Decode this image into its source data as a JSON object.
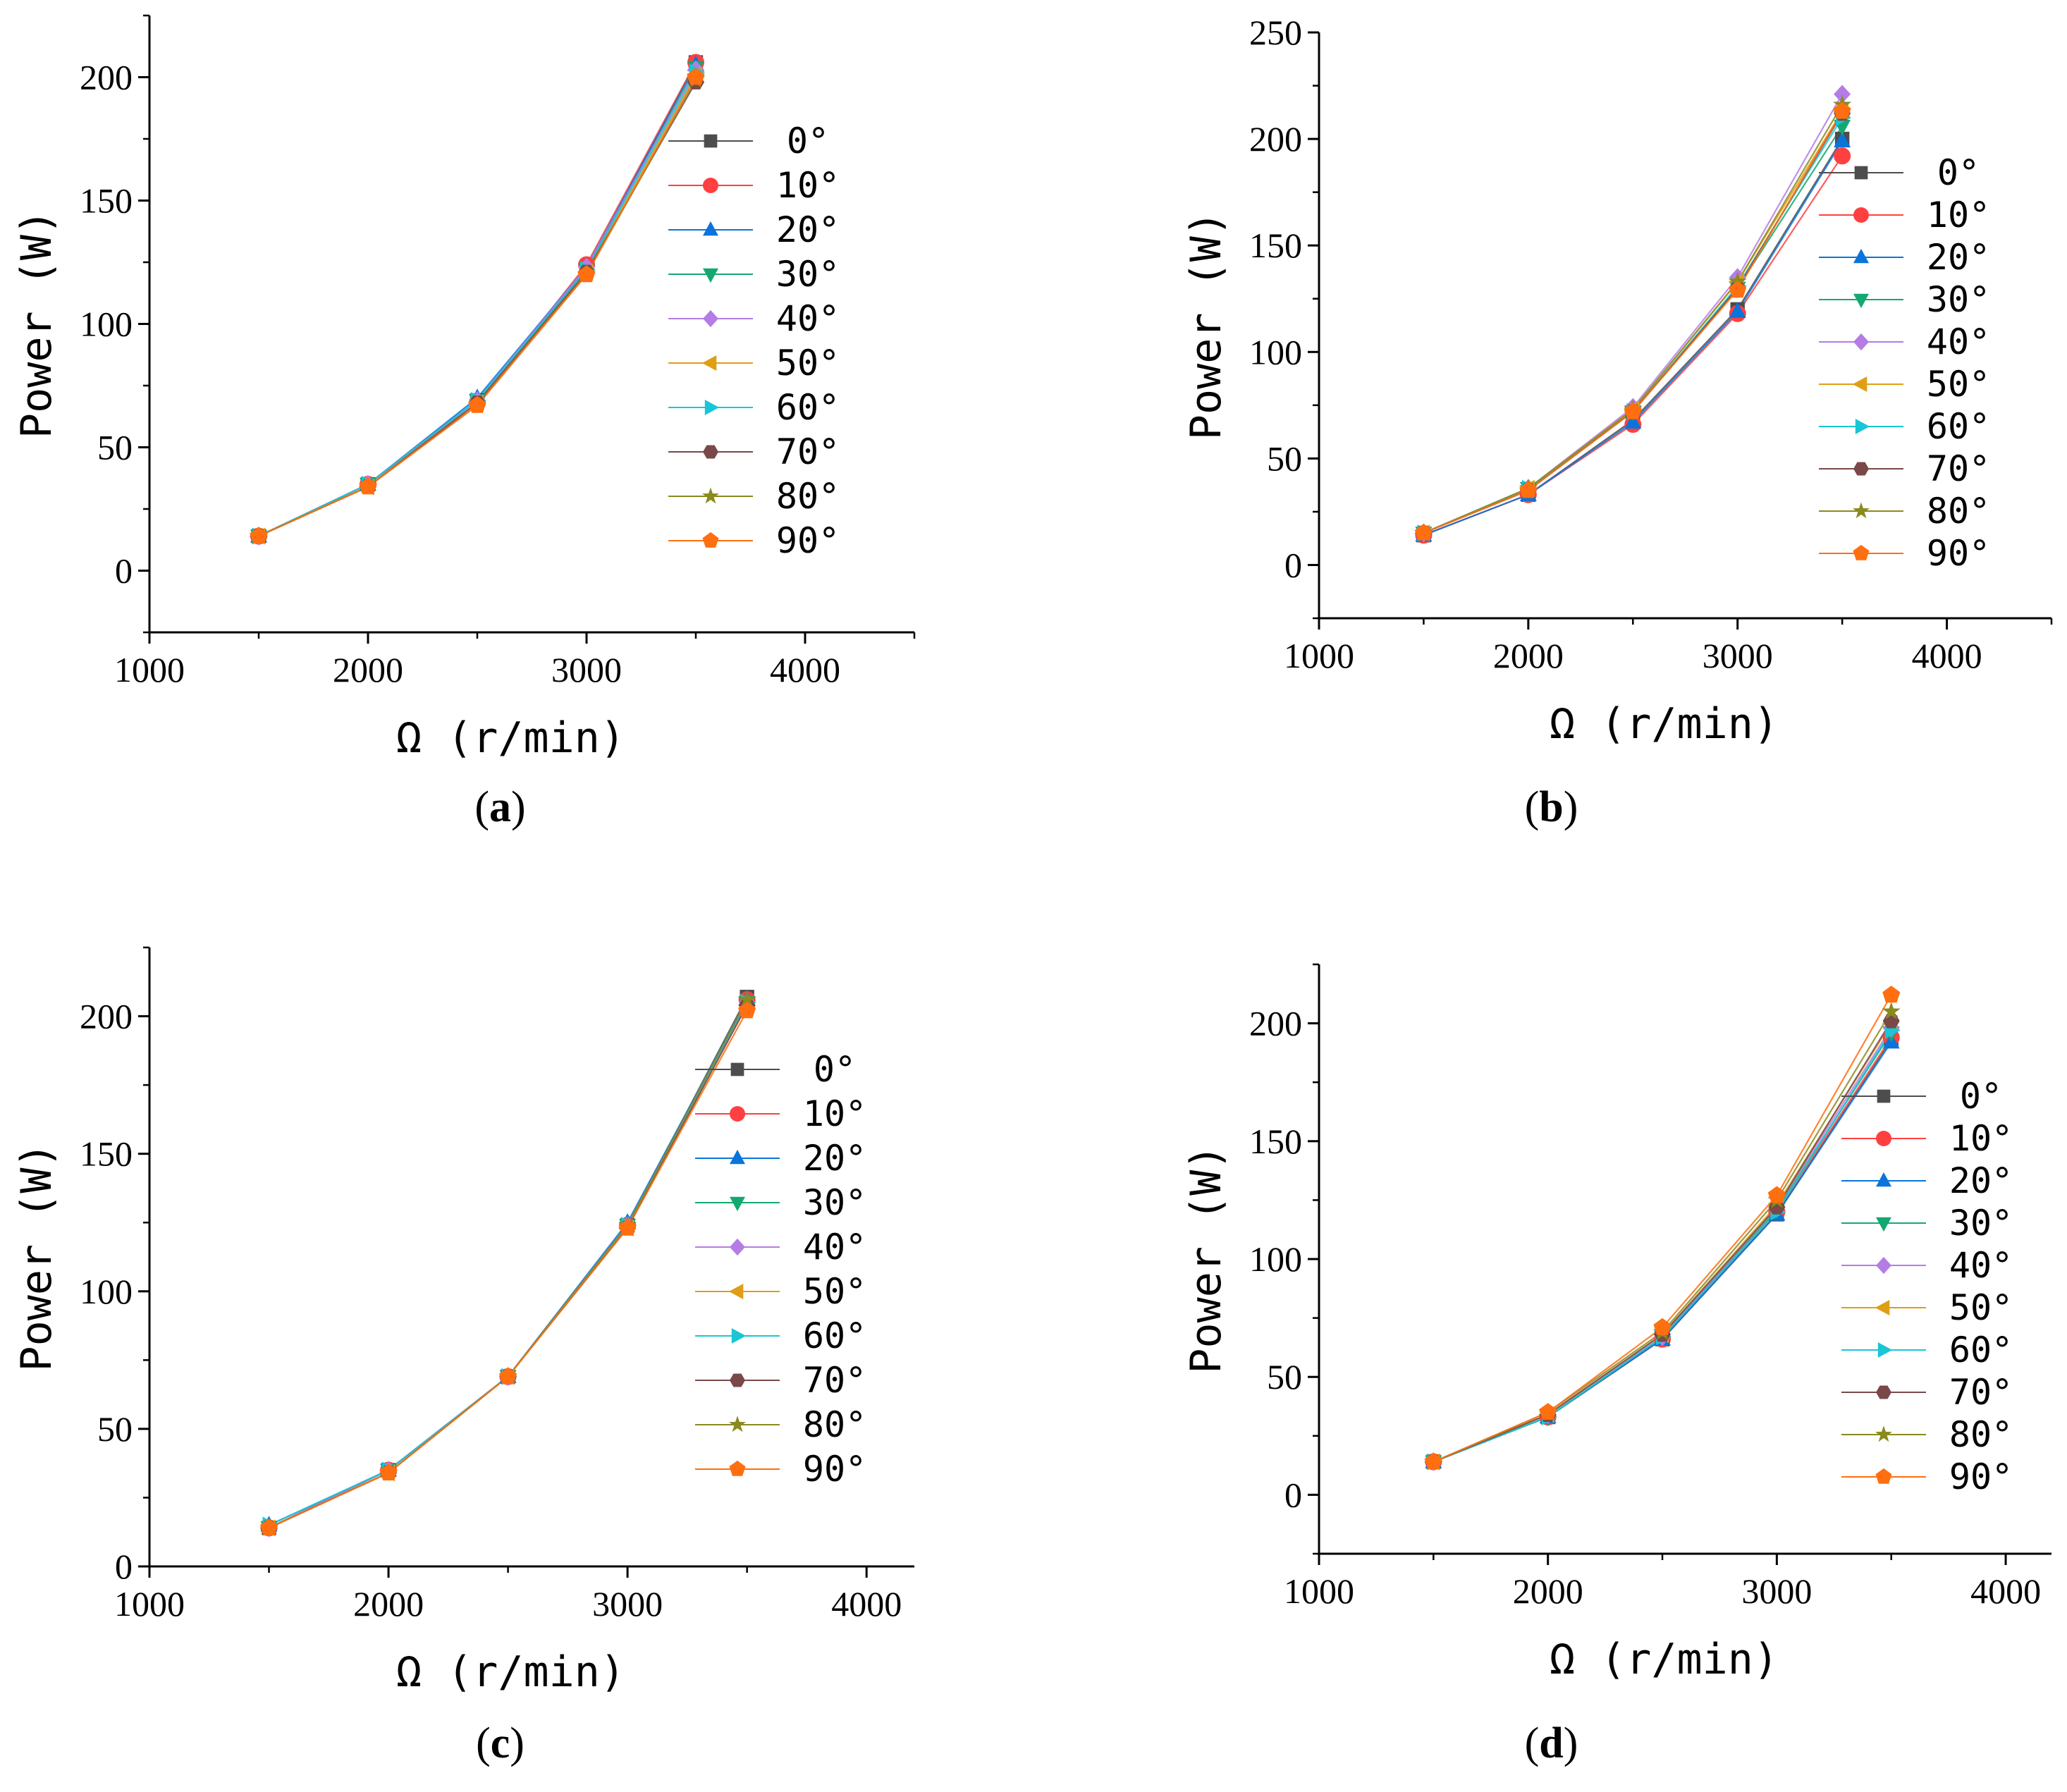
{
  "figure": {
    "legend_angles": [
      "0°",
      "10°",
      "20°",
      "30°",
      "40°",
      "50°",
      "60°",
      "70°",
      "80°",
      "90°"
    ],
    "series_colors": [
      "#4d4d4d",
      "#ff4040",
      "#0a74da",
      "#14a870",
      "#b57ce6",
      "#e09e14",
      "#18c6d6",
      "#7a4848",
      "#8a8a1e",
      "#ff6f0f"
    ],
    "series_markers": [
      "square",
      "circle",
      "triangle-up",
      "triangle-down",
      "diamond",
      "triangle-left",
      "triangle-right",
      "hexagon",
      "star",
      "pentagon"
    ]
  },
  "chart_data": [
    {
      "type": "line",
      "panel": "(a)",
      "panel_letter": "a",
      "xlabel": "Ω  (r/min)",
      "ylabel": "Power  (W)",
      "xlim": [
        1000,
        4500
      ],
      "ylim": [
        -25,
        225
      ],
      "xticks": [
        1000,
        2000,
        3000,
        4000
      ],
      "yticks": [
        0,
        50,
        100,
        150,
        200
      ],
      "x": [
        1500,
        2000,
        2500,
        3000,
        3500
      ],
      "series": [
        {
          "name": "0°",
          "values": [
            14,
            35,
            69,
            122,
            206
          ]
        },
        {
          "name": "10°",
          "values": [
            14,
            35,
            68,
            124,
            206
          ]
        },
        {
          "name": "20°",
          "values": [
            14,
            35,
            70,
            123,
            205
          ]
        },
        {
          "name": "30°",
          "values": [
            14,
            35,
            69,
            122,
            204
          ]
        },
        {
          "name": "40°",
          "values": [
            14,
            35,
            69,
            123,
            203
          ]
        },
        {
          "name": "50°",
          "values": [
            14,
            34,
            68,
            121,
            201
          ]
        },
        {
          "name": "60°",
          "values": [
            14,
            35,
            69,
            122,
            202
          ]
        },
        {
          "name": "70°",
          "values": [
            14,
            34,
            68,
            121,
            198
          ]
        },
        {
          "name": "80°",
          "values": [
            14,
            34,
            67,
            120,
            199
          ]
        },
        {
          "name": "90°",
          "values": [
            14,
            34,
            67,
            120,
            200
          ]
        }
      ]
    },
    {
      "type": "line",
      "panel": "(b)",
      "panel_letter": "b",
      "xlabel": "Ω  (r/min)",
      "ylabel": "Power  (W)",
      "xlim": [
        1000,
        4500
      ],
      "ylim": [
        -25,
        250
      ],
      "xticks": [
        1000,
        2000,
        3000,
        4000
      ],
      "yticks": [
        0,
        50,
        100,
        150,
        200,
        250
      ],
      "x": [
        1500,
        2000,
        2500,
        3000,
        3500
      ],
      "series": [
        {
          "name": "0°",
          "values": [
            14,
            33,
            68,
            120,
            200
          ]
        },
        {
          "name": "10°",
          "values": [
            14,
            33,
            66,
            118,
            192
          ]
        },
        {
          "name": "20°",
          "values": [
            14,
            33,
            67,
            119,
            199
          ]
        },
        {
          "name": "30°",
          "values": [
            15,
            36,
            72,
            130,
            206
          ]
        },
        {
          "name": "40°",
          "values": [
            15,
            36,
            74,
            135,
            221
          ]
        },
        {
          "name": "50°",
          "values": [
            15,
            36,
            73,
            133,
            213
          ]
        },
        {
          "name": "60°",
          "values": [
            15,
            36,
            72,
            131,
            210
          ]
        },
        {
          "name": "70°",
          "values": [
            15,
            35,
            72,
            130,
            212
          ]
        },
        {
          "name": "80°",
          "values": [
            15,
            36,
            73,
            133,
            216
          ]
        },
        {
          "name": "90°",
          "values": [
            15,
            35,
            72,
            129,
            213
          ]
        }
      ]
    },
    {
      "type": "line",
      "panel": "(c)",
      "panel_letter": "c",
      "xlabel": "Ω  (r/min)",
      "ylabel": "Power  (W)",
      "xlim": [
        1000,
        4200
      ],
      "ylim": [
        0,
        225
      ],
      "xticks": [
        1000,
        2000,
        3000,
        4000
      ],
      "yticks": [
        0,
        50,
        100,
        150,
        200
      ],
      "x": [
        1500,
        2000,
        2500,
        3000,
        3500
      ],
      "series": [
        {
          "name": "0°",
          "values": [
            14,
            35,
            69,
            124,
            207
          ]
        },
        {
          "name": "10°",
          "values": [
            14,
            35,
            69,
            124,
            206
          ]
        },
        {
          "name": "20°",
          "values": [
            15,
            35,
            69,
            125,
            206
          ]
        },
        {
          "name": "30°",
          "values": [
            14,
            35,
            69,
            124,
            205
          ]
        },
        {
          "name": "40°",
          "values": [
            14,
            35,
            69,
            124,
            205
          ]
        },
        {
          "name": "50°",
          "values": [
            14,
            34,
            69,
            123,
            204
          ]
        },
        {
          "name": "60°",
          "values": [
            15,
            35,
            69,
            124,
            205
          ]
        },
        {
          "name": "70°",
          "values": [
            14,
            34,
            69,
            123,
            204
          ]
        },
        {
          "name": "80°",
          "values": [
            14,
            34,
            69,
            124,
            206
          ]
        },
        {
          "name": "90°",
          "values": [
            14,
            34,
            69,
            123,
            202
          ]
        }
      ]
    },
    {
      "type": "line",
      "panel": "(d)",
      "panel_letter": "d",
      "xlabel": "Ω  (r/min)",
      "ylabel": "Power  (W)",
      "xlim": [
        1000,
        4200
      ],
      "ylim": [
        -25,
        225
      ],
      "xticks": [
        1000,
        2000,
        3000,
        4000
      ],
      "yticks": [
        0,
        50,
        100,
        150,
        200
      ],
      "x": [
        1500,
        2000,
        2500,
        3000,
        3500
      ],
      "series": [
        {
          "name": "0°",
          "values": [
            14,
            33,
            66,
            119,
            193
          ]
        },
        {
          "name": "10°",
          "values": [
            14,
            33,
            66,
            120,
            194
          ]
        },
        {
          "name": "20°",
          "values": [
            14,
            33,
            66,
            119,
            192
          ]
        },
        {
          "name": "30°",
          "values": [
            14,
            33,
            67,
            121,
            196
          ]
        },
        {
          "name": "40°",
          "values": [
            14,
            34,
            67,
            122,
            198
          ]
        },
        {
          "name": "50°",
          "values": [
            14,
            34,
            68,
            123,
            200
          ]
        },
        {
          "name": "60°",
          "values": [
            14,
            33,
            67,
            120,
            197
          ]
        },
        {
          "name": "70°",
          "values": [
            14,
            34,
            68,
            122,
            201
          ]
        },
        {
          "name": "80°",
          "values": [
            14,
            35,
            69,
            125,
            205
          ]
        },
        {
          "name": "90°",
          "values": [
            14,
            35,
            71,
            127,
            212
          ]
        }
      ]
    }
  ]
}
